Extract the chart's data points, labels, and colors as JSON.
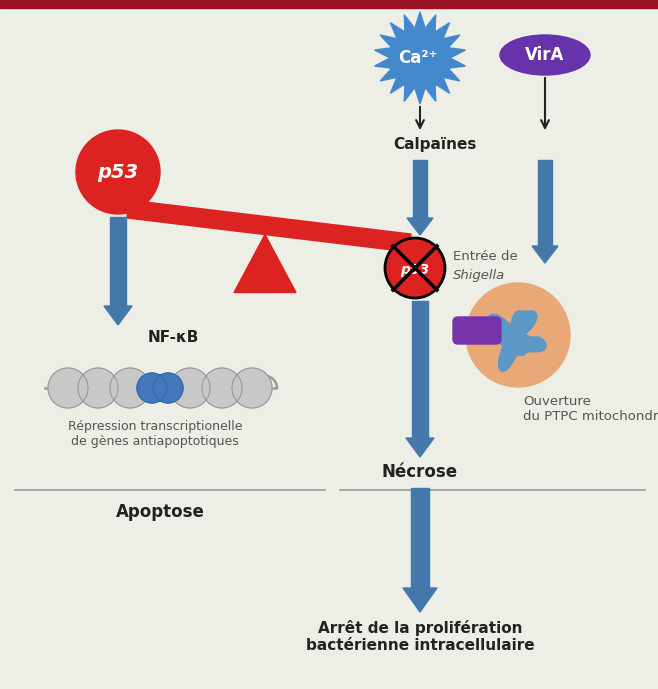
{
  "bg_color": "#edeee5",
  "top_border_color": "#991122",
  "p53_color": "#dd2222",
  "ca_color": "#4488cc",
  "vira_color": "#6633aa",
  "beam_color": "#dd2222",
  "triangle_color": "#dd2222",
  "arrow_blue": "#4477aa",
  "arrow_dark": "#222222",
  "divider_color": "#999999",
  "dna_gray": "#bbbbbb",
  "dna_blue": "#4477bb",
  "mito_orange": "#e8a878",
  "mito_blue": "#5599cc",
  "mito_purple": "#7733aa",
  "text_dark": "#222222",
  "text_gray": "#555555",
  "ca_label": "Ca²⁺",
  "vira_label": "VirA",
  "calpaines_label": "Calpaïnes",
  "entree_label": "Entrée de ",
  "shigella_label": "Shigella",
  "ouverture_label": "Ouverture\ndu PTPC mitochondrial",
  "nfkb_label": "NF-κB",
  "repression_label": "Répression transcriptionelle\nde gènes antiapoptotiques",
  "apoptose_label": "Apoptose",
  "necrose_label": "Nécrose",
  "arret_label": "Arrêt de la prolifération\nbactérienne intracellulaire"
}
